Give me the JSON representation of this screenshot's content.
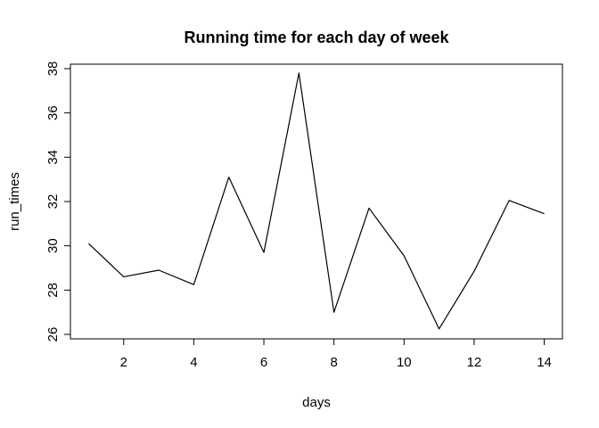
{
  "chart_data": {
    "type": "line",
    "title": "Running time for each day of week",
    "xlabel": "days",
    "ylabel": "run_times",
    "x": [
      1,
      2,
      3,
      4,
      5,
      6,
      7,
      8,
      9,
      10,
      11,
      12,
      13,
      14
    ],
    "series": [
      {
        "values": [
          30.1,
          28.6,
          28.9,
          28.25,
          33.1,
          29.7,
          37.8,
          27.0,
          31.7,
          29.55,
          26.25,
          28.85,
          32.05,
          31.45
        ]
      }
    ],
    "xlim": [
      0.48,
      14.52
    ],
    "ylim": [
      25.8,
      38.2
    ],
    "xticks": [
      2,
      4,
      6,
      8,
      10,
      12,
      14
    ],
    "yticks": [
      26,
      28,
      30,
      32,
      34,
      36,
      38
    ],
    "line_color": "#000000",
    "grid": false
  }
}
